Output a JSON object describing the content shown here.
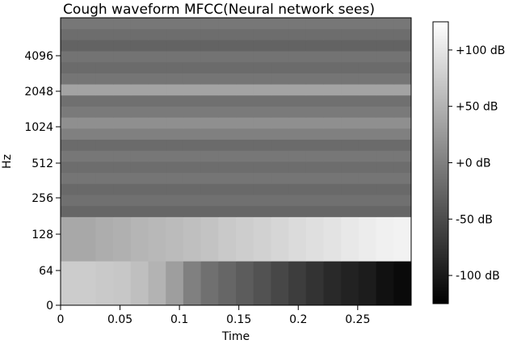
{
  "chart_data": {
    "type": "heatmap",
    "title": "Cough waveform MFCC(Neural network sees)",
    "xlabel": "Time",
    "ylabel": "Hz",
    "xlim": [
      0,
      0.295
    ],
    "x_ticks": [
      {
        "value": 0,
        "label": "0"
      },
      {
        "value": 0.05,
        "label": "0.05"
      },
      {
        "value": 0.1,
        "label": "0.1"
      },
      {
        "value": 0.15,
        "label": "0.15"
      },
      {
        "value": 0.2,
        "label": "0.2"
      },
      {
        "value": 0.25,
        "label": "0.25"
      }
    ],
    "y_ticks": [
      "0",
      "64",
      "128",
      "256",
      "512",
      "1024",
      "2048",
      "4096"
    ],
    "colorbar": {
      "range": [
        -125,
        125
      ],
      "colormap": "gray",
      "ticks": [
        {
          "value": 100,
          "label": "+100 dB"
        },
        {
          "value": 50,
          "label": "+50 dB"
        },
        {
          "value": 0,
          "label": "+0 dB"
        },
        {
          "value": -50,
          "label": "-50 dB"
        },
        {
          "value": -100,
          "label": "-100 dB"
        }
      ]
    },
    "time_bins": 20,
    "coefficients": [
      {
        "index": 0,
        "values": [
          75,
          75,
          72,
          70,
          62,
          50,
          30,
          0,
          -15,
          -25,
          -35,
          -45,
          -55,
          -65,
          -75,
          -85,
          -92,
          -98,
          -108,
          -115
        ]
      },
      {
        "index": 1,
        "values": [
          40,
          40,
          45,
          48,
          52,
          55,
          58,
          62,
          66,
          72,
          76,
          80,
          85,
          90,
          94,
          98,
          102,
          106,
          110,
          112
        ]
      },
      {
        "index": 2,
        "values": [
          -25,
          -25,
          -25,
          -25,
          -25,
          -25,
          -25,
          -25,
          -25,
          -25,
          -25,
          -25,
          -25,
          -25,
          -25,
          -25,
          -25,
          -25,
          -25,
          -25
        ]
      },
      {
        "index": 3,
        "values": [
          -15,
          -15,
          -15,
          -15,
          -15,
          -15,
          -15,
          -15,
          -15,
          -15,
          -15,
          -15,
          -15,
          -15,
          -15,
          -15,
          -15,
          -15,
          -15,
          -15
        ]
      },
      {
        "index": 4,
        "values": [
          -22,
          -22,
          -22,
          -22,
          -22,
          -22,
          -22,
          -22,
          -22,
          -22,
          -22,
          -22,
          -22,
          -22,
          -22,
          -22,
          -22,
          -22,
          -22,
          -22
        ]
      },
      {
        "index": 5,
        "values": [
          -10,
          -10,
          -10,
          -10,
          -10,
          -10,
          -10,
          -10,
          -10,
          -10,
          -10,
          -10,
          -10,
          -10,
          -10,
          -10,
          -10,
          -10,
          -10,
          -10
        ]
      },
      {
        "index": 6,
        "values": [
          -18,
          -18,
          -18,
          -18,
          -18,
          -18,
          -18,
          -18,
          -18,
          -18,
          -18,
          -18,
          -18,
          -18,
          -18,
          -18,
          -18,
          -18,
          -18,
          -18
        ]
      },
      {
        "index": 7,
        "values": [
          -8,
          -8,
          -8,
          -8,
          -8,
          -8,
          -8,
          -8,
          -8,
          -8,
          -8,
          -8,
          -8,
          -8,
          -8,
          -8,
          -8,
          -8,
          -8,
          -8
        ]
      },
      {
        "index": 8,
        "values": [
          -20,
          -20,
          -20,
          -20,
          -20,
          -20,
          -20,
          -20,
          -20,
          -20,
          -20,
          -20,
          -20,
          -20,
          -20,
          -20,
          -20,
          -20,
          -20,
          -20
        ]
      },
      {
        "index": 9,
        "values": [
          0,
          0,
          0,
          0,
          0,
          0,
          0,
          0,
          0,
          0,
          0,
          0,
          0,
          0,
          0,
          0,
          0,
          0,
          0,
          0
        ]
      },
      {
        "index": 10,
        "values": [
          15,
          15,
          15,
          15,
          15,
          15,
          15,
          15,
          15,
          15,
          15,
          15,
          15,
          15,
          15,
          15,
          15,
          15,
          15,
          15
        ]
      },
      {
        "index": 11,
        "values": [
          -5,
          -5,
          -5,
          -5,
          -5,
          -5,
          -5,
          -5,
          -5,
          -5,
          -5,
          -5,
          -5,
          -5,
          -5,
          -5,
          -5,
          -5,
          -5,
          -5
        ]
      },
      {
        "index": 12,
        "values": [
          -15,
          -15,
          -15,
          -15,
          -15,
          -15,
          -15,
          -15,
          -15,
          -15,
          -15,
          -15,
          -15,
          -15,
          -15,
          -15,
          -15,
          -15,
          -15,
          -15
        ]
      },
      {
        "index": 13,
        "values": [
          35,
          35,
          35,
          35,
          35,
          35,
          35,
          35,
          35,
          35,
          35,
          35,
          35,
          35,
          35,
          35,
          35,
          35,
          35,
          35
        ]
      },
      {
        "index": 14,
        "values": [
          -10,
          -10,
          -10,
          -10,
          -10,
          -10,
          -10,
          -10,
          -10,
          -10,
          -10,
          -10,
          -10,
          -10,
          -10,
          -10,
          -10,
          -10,
          -10,
          -10
        ]
      },
      {
        "index": 15,
        "values": [
          -20,
          -20,
          -20,
          -20,
          -20,
          -20,
          -20,
          -20,
          -20,
          -20,
          -20,
          -20,
          -20,
          -20,
          -20,
          -20,
          -20,
          -20,
          -20,
          -20
        ]
      },
      {
        "index": 16,
        "values": [
          -12,
          -12,
          -12,
          -12,
          -12,
          -12,
          -12,
          -12,
          -12,
          -12,
          -12,
          -12,
          -12,
          -12,
          -12,
          -12,
          -12,
          -12,
          -12,
          -12
        ]
      },
      {
        "index": 17,
        "values": [
          -28,
          -28,
          -28,
          -28,
          -28,
          -28,
          -28,
          -28,
          -28,
          -28,
          -28,
          -28,
          -28,
          -28,
          -28,
          -28,
          -28,
          -28,
          -28,
          -28
        ]
      },
      {
        "index": 18,
        "values": [
          -18,
          -18,
          -18,
          -18,
          -18,
          -18,
          -18,
          -18,
          -18,
          -18,
          -18,
          -18,
          -18,
          -18,
          -18,
          -18,
          -18,
          -18,
          -18,
          -18
        ]
      },
      {
        "index": 19,
        "values": [
          -8,
          -8,
          -8,
          -8,
          -8,
          -8,
          -8,
          -8,
          -8,
          -8,
          -8,
          -8,
          -8,
          -8,
          -8,
          -8,
          -8,
          -8,
          -8,
          -8
        ]
      }
    ]
  }
}
